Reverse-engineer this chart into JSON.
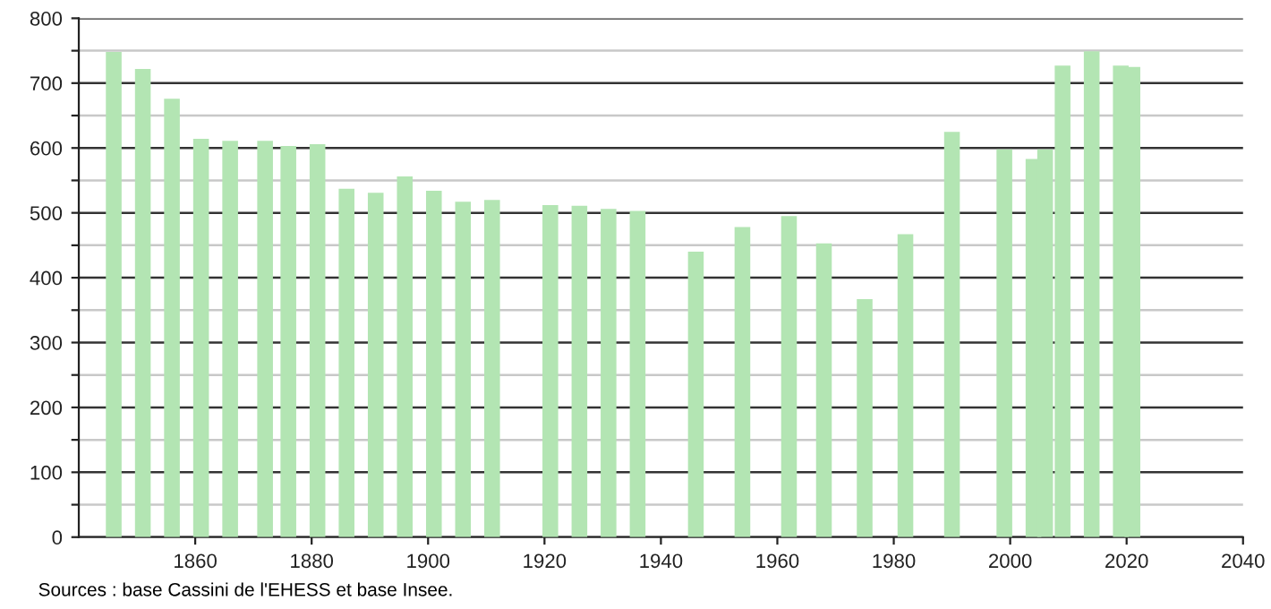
{
  "chart_data": {
    "type": "bar",
    "color": "#b3e5b3",
    "x": [
      1846,
      1851,
      1856,
      1861,
      1866,
      1872,
      1876,
      1881,
      1886,
      1891,
      1896,
      1901,
      1906,
      1911,
      1921,
      1926,
      1931,
      1936,
      1946,
      1954,
      1962,
      1968,
      1975,
      1982,
      1990,
      1999,
      2004,
      2006,
      2009,
      2014,
      2019,
      2021
    ],
    "values": [
      748,
      722,
      676,
      614,
      611,
      611,
      603,
      606,
      537,
      531,
      556,
      534,
      517,
      520,
      512,
      511,
      506,
      503,
      440,
      478,
      495,
      453,
      367,
      467,
      625,
      598,
      583,
      598,
      727,
      749,
      727,
      725
    ],
    "xlim": [
      1840,
      2040
    ],
    "xticks": [
      1860,
      1880,
      1900,
      1920,
      1940,
      1960,
      1980,
      2000,
      2020,
      2040
    ],
    "ylim": [
      0,
      800
    ],
    "yticks": [
      0,
      {
        "value": 50,
        "label": null
      },
      100,
      {
        "value": 150,
        "label": null
      },
      200,
      {
        "value": 250,
        "label": null
      },
      300,
      {
        "value": 350,
        "label": null
      },
      400,
      {
        "value": 450,
        "label": null
      },
      500,
      {
        "value": 550,
        "label": null
      },
      600,
      {
        "value": 650,
        "label": null
      },
      700,
      {
        "value": 750,
        "label": null
      },
      800
    ],
    "grid": "y",
    "annotations": [
      "Sources : base Cassini de l'EHESS et base Insee."
    ]
  }
}
